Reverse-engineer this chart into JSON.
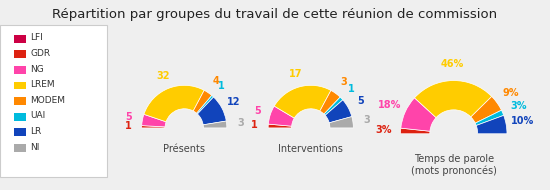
{
  "title": "Répartition par groupes du travail de cette réunion de commission",
  "groups": [
    "LFI",
    "GDR",
    "NG",
    "LREM",
    "MODEM",
    "UAI",
    "LR",
    "NI"
  ],
  "colors": [
    "#cc0044",
    "#dd2211",
    "#ff44aa",
    "#ffcc00",
    "#ff8800",
    "#00bbdd",
    "#1144bb",
    "#aaaaaa"
  ],
  "presents": [
    0,
    1,
    5,
    32,
    4,
    1,
    12,
    3
  ],
  "interventions": [
    0,
    1,
    5,
    17,
    3,
    1,
    5,
    3
  ],
  "temps_parole": [
    0,
    3,
    18,
    46,
    9,
    3,
    10,
    0
  ],
  "presentes_labels": [
    "",
    "1",
    "5",
    "32",
    "4",
    "1",
    "12",
    "3"
  ],
  "interventions_labels": [
    "",
    "1",
    "5",
    "17",
    "3",
    "1",
    "5",
    "3"
  ],
  "temps_labels": [
    "",
    "3%",
    "18%",
    "46%",
    "9%",
    "3%",
    "10%",
    ""
  ],
  "chart_titles": [
    "Présents",
    "Interventions",
    "Temps de parole\n(mots prononcés)"
  ],
  "background_color": "#efefef",
  "legend_bg": "#ffffff"
}
